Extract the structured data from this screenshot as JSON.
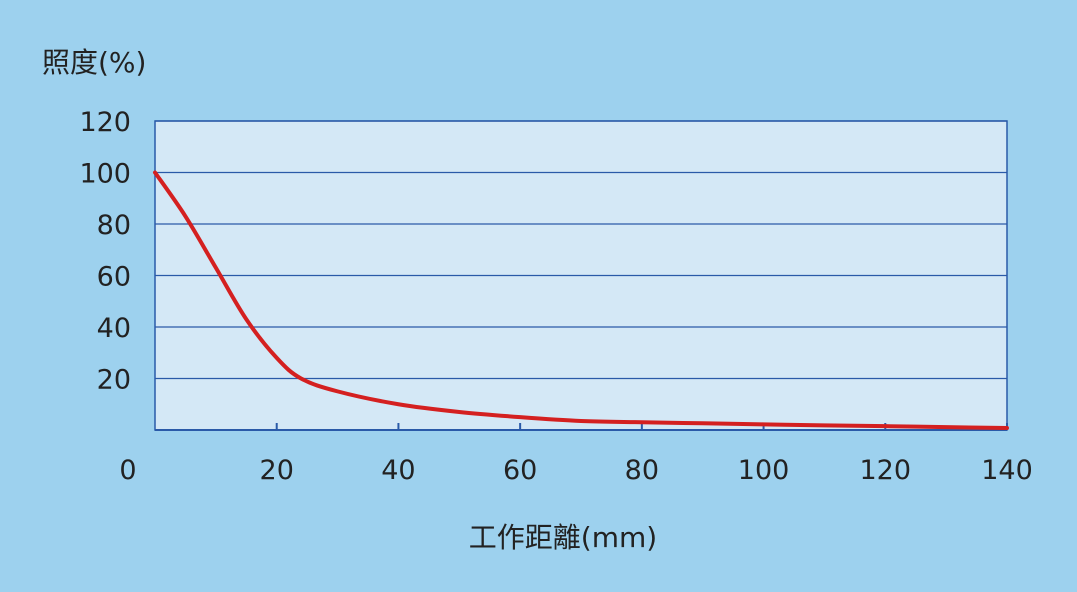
{
  "colors": {
    "background": "#9dd1ee",
    "plot_area": "#d4e8f6",
    "grid": "#2a5aa8",
    "curve": "#d42020",
    "text": "#222222"
  },
  "chart_data": {
    "type": "line",
    "title": "",
    "xlabel": "工作距離(mm)",
    "ylabel": "照度(%)",
    "xlim": [
      0,
      140
    ],
    "ylim": [
      0,
      120
    ],
    "x_ticks": [
      "0",
      "20",
      "40",
      "60",
      "80",
      "100",
      "120",
      "140"
    ],
    "y_ticks": [
      "20",
      "40",
      "60",
      "80",
      "100",
      "120"
    ],
    "grid": "horizontal",
    "legend": "none",
    "series": [
      {
        "x": [
          0,
          5,
          10,
          15,
          20,
          24,
          30,
          40,
          50,
          60,
          70,
          80,
          90,
          100,
          110,
          120,
          130,
          140
        ],
        "y": [
          100,
          83,
          63,
          43,
          28,
          20,
          15,
          10,
          7,
          5,
          3.5,
          3,
          2.6,
          2.2,
          1.8,
          1.5,
          1.1,
          0.8
        ]
      }
    ]
  }
}
